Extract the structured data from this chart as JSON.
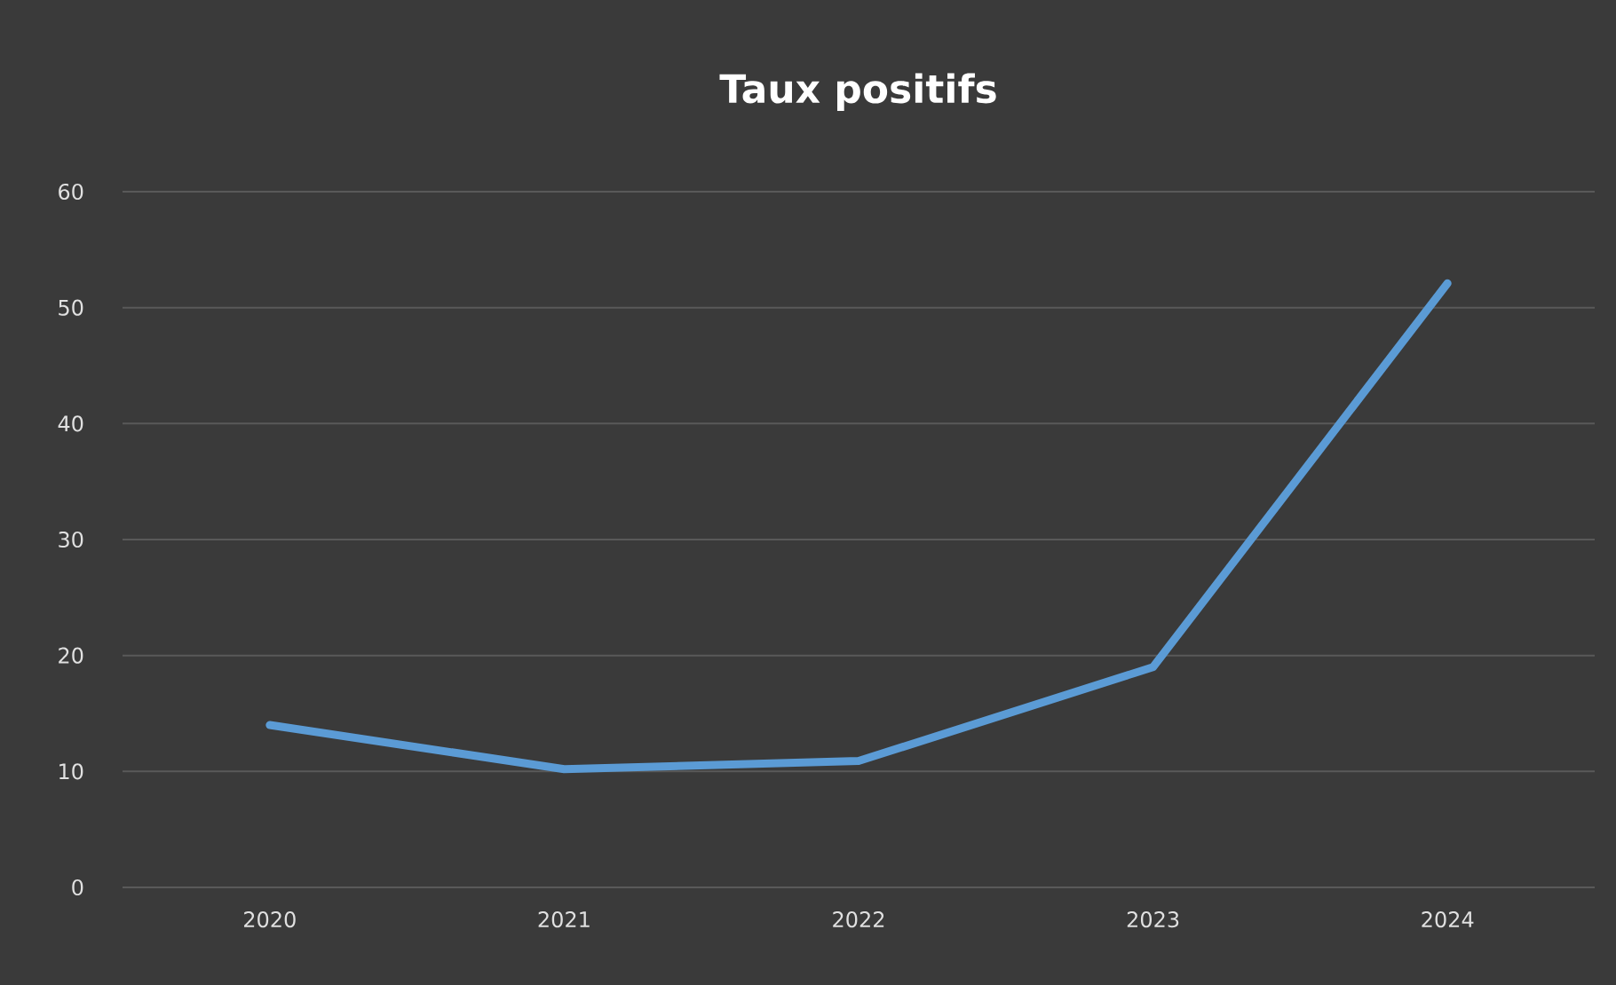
{
  "chart_data": {
    "type": "line",
    "title": "Taux positifs",
    "categories": [
      "2020",
      "2021",
      "2022",
      "2023",
      "2024"
    ],
    "values": [
      14,
      10.2,
      10.9,
      19,
      52.1
    ],
    "color": "#5b9bd5",
    "ylim": [
      0,
      60
    ],
    "yticks": [
      0,
      10,
      20,
      30,
      40,
      50,
      60
    ],
    "grid": "y"
  }
}
